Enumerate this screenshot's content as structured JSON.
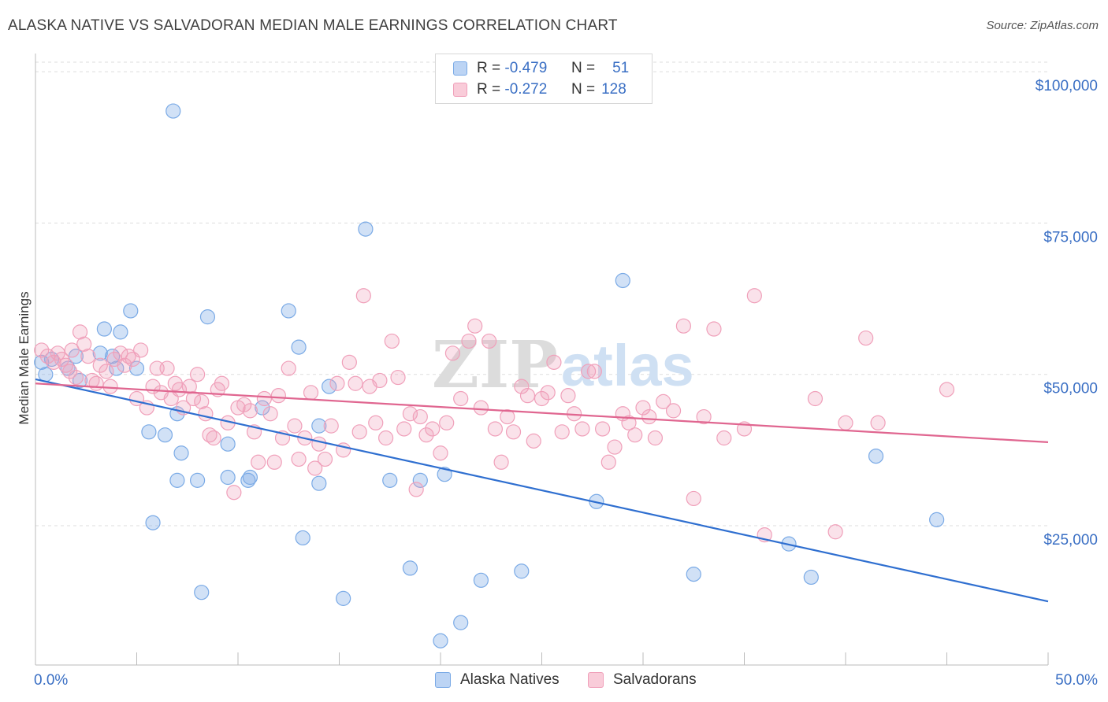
{
  "header": {
    "title": "ALASKA NATIVE VS SALVADORAN MEDIAN MALE EARNINGS CORRELATION CHART",
    "source": "Source: ZipAtlas.com"
  },
  "watermark": {
    "zip": "ZIP",
    "atlas": "atlas"
  },
  "legend": {
    "rows": [
      {
        "r_label": "R =",
        "r_value": "-0.479",
        "n_label": "N =",
        "n_value": "51",
        "color": "#7aaae6"
      },
      {
        "r_label": "R =",
        "r_value": "-0.272",
        "n_label": "N =",
        "n_value": "128",
        "color": "#f0a0ba"
      }
    ],
    "bottom": [
      {
        "label": "Alaska Natives",
        "color": "#7aaae6"
      },
      {
        "label": "Salvadorans",
        "color": "#f0a0ba"
      }
    ]
  },
  "chart_data": {
    "type": "scatter",
    "ylabel": "Median Male Earnings",
    "x_tick_labels": [
      "0.0%",
      "50.0%"
    ],
    "y_tick_labels": [
      "$100,000",
      "$75,000",
      "$50,000",
      "$25,000"
    ],
    "y_ticks": [
      100000,
      75000,
      50000,
      25000
    ],
    "xlim": [
      0,
      50
    ],
    "ylim": [
      2000,
      103000
    ],
    "grid": true,
    "series": [
      {
        "name": "Alaska Natives",
        "color": "#7aaae6",
        "line_color": "#2f6fd0",
        "trend": {
          "x": [
            0,
            50
          ],
          "y": [
            49200,
            12500
          ]
        },
        "points": [
          [
            0.5,
            50000
          ],
          [
            0.8,
            52500
          ],
          [
            1.6,
            51000
          ],
          [
            2.2,
            49000
          ],
          [
            2.0,
            53000
          ],
          [
            3.2,
            53500
          ],
          [
            3.4,
            57500
          ],
          [
            4.2,
            57000
          ],
          [
            3.8,
            53000
          ],
          [
            4.0,
            51000
          ],
          [
            4.7,
            60500
          ],
          [
            5.0,
            51000
          ],
          [
            5.6,
            40500
          ],
          [
            6.4,
            40000
          ],
          [
            5.8,
            25500
          ],
          [
            6.8,
            93500
          ],
          [
            7.0,
            43500
          ],
          [
            7.2,
            37000
          ],
          [
            7.0,
            32500
          ],
          [
            8.0,
            32500
          ],
          [
            8.5,
            59500
          ],
          [
            8.2,
            14000
          ],
          [
            9.5,
            33000
          ],
          [
            9.5,
            38500
          ],
          [
            10.5,
            32500
          ],
          [
            10.6,
            33000
          ],
          [
            11.2,
            44500
          ],
          [
            12.5,
            60500
          ],
          [
            13.0,
            54500
          ],
          [
            13.2,
            23000
          ],
          [
            14.0,
            41500
          ],
          [
            14.0,
            32000
          ],
          [
            14.5,
            48000
          ],
          [
            15.2,
            13000
          ],
          [
            16.3,
            74000
          ],
          [
            17.5,
            32500
          ],
          [
            18.5,
            18000
          ],
          [
            19.0,
            32500
          ],
          [
            20.0,
            6000
          ],
          [
            20.2,
            33500
          ],
          [
            21.0,
            9000
          ],
          [
            22.0,
            16000
          ],
          [
            24.0,
            17500
          ],
          [
            27.7,
            29000
          ],
          [
            29.0,
            65500
          ],
          [
            32.5,
            17000
          ],
          [
            37.2,
            22000
          ],
          [
            38.3,
            16500
          ],
          [
            41.5,
            36500
          ],
          [
            44.5,
            26000
          ],
          [
            0.3,
            52000
          ]
        ]
      },
      {
        "name": "Salvadorans",
        "color": "#f0a0ba",
        "line_color": "#e06690",
        "trend": {
          "x": [
            0,
            50
          ],
          "y": [
            48500,
            38800
          ]
        },
        "points": [
          [
            0.3,
            54000
          ],
          [
            0.6,
            53000
          ],
          [
            0.9,
            52000
          ],
          [
            1.1,
            53500
          ],
          [
            1.3,
            52500
          ],
          [
            1.5,
            51500
          ],
          [
            1.7,
            50500
          ],
          [
            1.8,
            54000
          ],
          [
            2.0,
            49500
          ],
          [
            2.2,
            57000
          ],
          [
            2.4,
            55000
          ],
          [
            2.6,
            53000
          ],
          [
            2.8,
            49000
          ],
          [
            3.0,
            48500
          ],
          [
            3.2,
            51500
          ],
          [
            3.5,
            50500
          ],
          [
            3.7,
            48000
          ],
          [
            3.9,
            52500
          ],
          [
            4.2,
            53500
          ],
          [
            4.4,
            51500
          ],
          [
            4.6,
            53000
          ],
          [
            4.8,
            52500
          ],
          [
            5.0,
            46000
          ],
          [
            5.2,
            54000
          ],
          [
            5.5,
            44500
          ],
          [
            5.8,
            48000
          ],
          [
            6.0,
            51000
          ],
          [
            6.2,
            47000
          ],
          [
            6.5,
            51000
          ],
          [
            6.7,
            46000
          ],
          [
            6.9,
            48500
          ],
          [
            7.1,
            47500
          ],
          [
            7.3,
            44500
          ],
          [
            7.6,
            48000
          ],
          [
            7.8,
            46000
          ],
          [
            8.0,
            50000
          ],
          [
            8.2,
            45500
          ],
          [
            8.4,
            43500
          ],
          [
            8.6,
            40000
          ],
          [
            8.8,
            39500
          ],
          [
            9.0,
            47500
          ],
          [
            9.2,
            48500
          ],
          [
            9.5,
            42000
          ],
          [
            9.8,
            30500
          ],
          [
            10.0,
            44500
          ],
          [
            10.3,
            45000
          ],
          [
            10.6,
            44000
          ],
          [
            10.8,
            40500
          ],
          [
            11.0,
            35500
          ],
          [
            11.3,
            46000
          ],
          [
            11.6,
            43500
          ],
          [
            11.8,
            35500
          ],
          [
            12.0,
            46500
          ],
          [
            12.2,
            39500
          ],
          [
            12.5,
            51000
          ],
          [
            12.8,
            41500
          ],
          [
            13.0,
            36000
          ],
          [
            13.3,
            39500
          ],
          [
            13.6,
            47000
          ],
          [
            13.8,
            34500
          ],
          [
            14.0,
            38500
          ],
          [
            14.3,
            36000
          ],
          [
            14.6,
            41500
          ],
          [
            14.9,
            48500
          ],
          [
            15.2,
            37500
          ],
          [
            15.5,
            52000
          ],
          [
            15.8,
            48500
          ],
          [
            16.0,
            40500
          ],
          [
            16.2,
            63000
          ],
          [
            16.5,
            48000
          ],
          [
            16.8,
            42000
          ],
          [
            17.0,
            49000
          ],
          [
            17.3,
            39500
          ],
          [
            17.6,
            55500
          ],
          [
            17.9,
            49500
          ],
          [
            18.2,
            41000
          ],
          [
            18.5,
            43500
          ],
          [
            18.8,
            31000
          ],
          [
            19.0,
            43000
          ],
          [
            19.3,
            40000
          ],
          [
            19.6,
            41000
          ],
          [
            20.0,
            37000
          ],
          [
            20.3,
            42000
          ],
          [
            20.6,
            53500
          ],
          [
            21.0,
            46000
          ],
          [
            21.4,
            55500
          ],
          [
            21.7,
            58000
          ],
          [
            22.0,
            44500
          ],
          [
            22.4,
            55500
          ],
          [
            22.7,
            41000
          ],
          [
            23.0,
            35500
          ],
          [
            23.3,
            43000
          ],
          [
            23.6,
            40500
          ],
          [
            24.0,
            48000
          ],
          [
            24.3,
            46500
          ],
          [
            24.6,
            39000
          ],
          [
            25.0,
            46000
          ],
          [
            25.3,
            47000
          ],
          [
            25.6,
            52000
          ],
          [
            26.0,
            40500
          ],
          [
            26.3,
            46500
          ],
          [
            26.6,
            43500
          ],
          [
            27.0,
            41000
          ],
          [
            27.3,
            50500
          ],
          [
            27.6,
            50500
          ],
          [
            28.0,
            41000
          ],
          [
            28.3,
            35500
          ],
          [
            28.6,
            38000
          ],
          [
            29.0,
            43500
          ],
          [
            29.3,
            42000
          ],
          [
            29.6,
            40000
          ],
          [
            30.0,
            44500
          ],
          [
            30.3,
            43000
          ],
          [
            30.6,
            39500
          ],
          [
            31.0,
            45500
          ],
          [
            31.5,
            44000
          ],
          [
            32.0,
            58000
          ],
          [
            32.5,
            29500
          ],
          [
            33.0,
            43000
          ],
          [
            33.5,
            57500
          ],
          [
            34.0,
            39500
          ],
          [
            35.0,
            41000
          ],
          [
            35.5,
            63000
          ],
          [
            36.0,
            23500
          ],
          [
            38.5,
            46000
          ],
          [
            39.5,
            24000
          ],
          [
            40.0,
            42000
          ],
          [
            41.0,
            56000
          ],
          [
            41.6,
            42000
          ],
          [
            45.0,
            47500
          ]
        ]
      }
    ]
  }
}
